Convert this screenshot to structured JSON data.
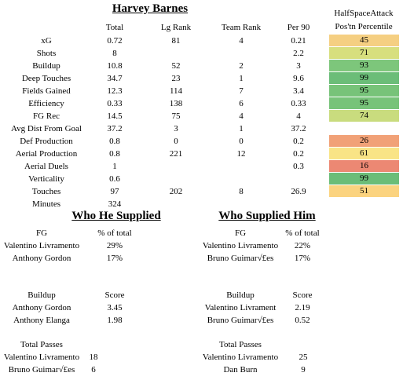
{
  "title": "Harvey Barnes",
  "columns": {
    "total": "Total",
    "lg_rank": "Lg Rank",
    "team_rank": "Team Rank",
    "per90": "Per 90"
  },
  "percentile_header": [
    "HalfSpaceAttack",
    "Pos'tn Percentile"
  ],
  "stats": [
    {
      "label": "xG",
      "total": "0.72",
      "lg_rank": "81",
      "team_rank": "4",
      "per90": "0.21",
      "pct": "45",
      "color": "#f5cf82"
    },
    {
      "label": "Shots",
      "total": "8",
      "lg_rank": "",
      "team_rank": "",
      "per90": "2.2",
      "pct": "71",
      "color": "#d7df7e"
    },
    {
      "label": "Buildup",
      "total": "10.8",
      "lg_rank": "52",
      "team_rank": "2",
      "per90": "3",
      "pct": "93",
      "color": "#7dc67b"
    },
    {
      "label": "Deep Touches",
      "total": "34.7",
      "lg_rank": "23",
      "team_rank": "1",
      "per90": "9.6",
      "pct": "99",
      "color": "#6bbd78"
    },
    {
      "label": "Fields Gained",
      "total": "12.3",
      "lg_rank": "114",
      "team_rank": "7",
      "per90": "3.4",
      "pct": "95",
      "color": "#77c379"
    },
    {
      "label": "Efficiency",
      "total": "0.33",
      "lg_rank": "138",
      "team_rank": "6",
      "per90": "0.33",
      "pct": "95",
      "color": "#77c379"
    },
    {
      "label": "FG Rec",
      "total": "14.5",
      "lg_rank": "75",
      "team_rank": "4",
      "per90": "4",
      "pct": "74",
      "color": "#c9dc7e"
    },
    {
      "label": "Avg Dist From Goal",
      "total": "37.2",
      "lg_rank": "3",
      "team_rank": "1",
      "per90": "37.2",
      "pct": "",
      "color": ""
    },
    {
      "label": "Def Production",
      "total": "0.8",
      "lg_rank": "0",
      "team_rank": "0",
      "per90": "0.2",
      "pct": "26",
      "color": "#f1a177"
    },
    {
      "label": "Aerial Production",
      "total": "0.8",
      "lg_rank": "221",
      "team_rank": "12",
      "per90": "0.2",
      "pct": "61",
      "color": "#f9e486"
    },
    {
      "label": "Aerial Duels",
      "total": "1",
      "lg_rank": "",
      "team_rank": "",
      "per90": "0.3",
      "pct": "16",
      "color": "#ec8873"
    },
    {
      "label": "Verticality",
      "total": "0.6",
      "lg_rank": "",
      "team_rank": "",
      "per90": "",
      "pct": "99",
      "color": "#6bbd78"
    },
    {
      "label": "Touches",
      "total": "97",
      "lg_rank": "202",
      "team_rank": "8",
      "per90": "26.9",
      "pct": "51",
      "color": "#fbd37f"
    },
    {
      "label": "Minutes",
      "total": "324",
      "lg_rank": "",
      "team_rank": "",
      "per90": "",
      "pct": "",
      "color": ""
    }
  ],
  "left": {
    "heading": "Who He Supplied",
    "fg": {
      "h1": "FG",
      "h2": "% of total",
      "rows": [
        [
          "Valentino Livramento",
          "29%"
        ],
        [
          "Anthony Gordon",
          "17%"
        ]
      ]
    },
    "buildup": {
      "h1": "Buildup",
      "h2": "Score",
      "rows": [
        [
          "Anthony Gordon",
          "3.45"
        ],
        [
          "Anthony Elanga",
          "1.98"
        ]
      ]
    },
    "passes": {
      "h1": "Total Passes",
      "rows": [
        [
          "Valentino Livramento",
          "18"
        ],
        [
          "Bruno Guimar√£es",
          "6"
        ]
      ]
    }
  },
  "right": {
    "heading": "Who Supplied Him",
    "fg": {
      "h1": "FG",
      "h2": "% of total",
      "rows": [
        [
          "Valentino Livramento",
          "22%"
        ],
        [
          "Bruno Guimar√£es",
          "17%"
        ]
      ]
    },
    "buildup": {
      "h1": "Buildup",
      "h2": "Score",
      "rows": [
        [
          "Valentino Livrament",
          "2.19"
        ],
        [
          "Bruno Guimar√£es",
          "0.52"
        ]
      ]
    },
    "passes": {
      "h1": "Total Passes",
      "rows": [
        [
          "Valentino Livramento",
          "25"
        ],
        [
          "Dan Burn",
          "9"
        ]
      ]
    }
  }
}
